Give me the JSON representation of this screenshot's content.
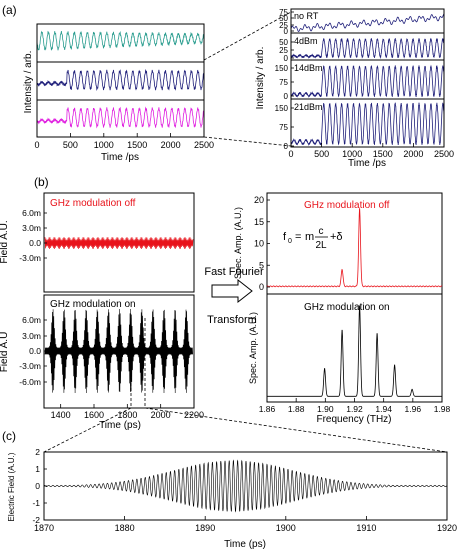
{
  "panel_labels": {
    "a": "(a)",
    "b": "(b)",
    "c": "(c)"
  },
  "colors": {
    "teal": "#2a9d8f",
    "navy": "#1f1f7a",
    "magenta": "#e020e0",
    "red": "#e8131b",
    "black": "#000000"
  },
  "arrow_text": {
    "line1": "Fast Fourier",
    "line2": "Transform"
  },
  "formula": {
    "lhs": "f",
    "sub": "0",
    "eq": "=",
    "m": "m",
    "num": "c",
    "den": "2L",
    "rest": "+δ"
  },
  "chart_data": [
    {
      "id": "a_left",
      "type": "line",
      "xlabel": "Time /ps",
      "ylabel": "Intensity / arb.",
      "x_ticks": [
        "0",
        "500",
        "1000",
        "1500",
        "2000",
        "2500"
      ],
      "xlim": [
        0,
        2500
      ],
      "series": [
        {
          "color": "#2a9d8f"
        },
        {
          "color": "#1f1f7a"
        },
        {
          "color": "#e020e0"
        }
      ]
    },
    {
      "id": "a_right",
      "type": "line",
      "xlabel": "Time /ps",
      "ylabel": "Intensity / arb.",
      "x_ticks": [
        "0",
        "500",
        "1000",
        "1500",
        "2000",
        "2500"
      ],
      "xlim": [
        0,
        2500
      ],
      "subpanels": [
        {
          "label": "no RT",
          "y_ticks": [
            "0",
            "25",
            "50",
            "75"
          ],
          "ylim": [
            0,
            80
          ]
        },
        {
          "label": "4dBm",
          "y_ticks": [
            "0",
            "25",
            "50"
          ],
          "ylim": [
            0,
            60
          ]
        },
        {
          "label": "14dBm",
          "y_ticks": [
            "0",
            "75",
            "150"
          ],
          "ylim": [
            0,
            160
          ]
        },
        {
          "label": "21dBm",
          "y_ticks": [
            "0",
            "75",
            "150"
          ],
          "ylim": [
            0,
            170
          ]
        }
      ]
    },
    {
      "id": "b_left",
      "type": "line",
      "xlabel": "Time (ps)",
      "x_ticks": [
        "1400",
        "1600",
        "1800",
        "2000",
        "2200"
      ],
      "xlim": [
        1300,
        2200
      ],
      "subpanels": [
        {
          "label": "GHz modulation off",
          "ylabel": "Field A.U.",
          "y_ticks": [
            "6.0m",
            "3.0m",
            "0.0",
            "-3.0m"
          ],
          "ylim": [
            -0.0045,
            0.0075
          ]
        },
        {
          "label": "GHz modulation on",
          "ylabel": "Field A.U",
          "y_ticks": [
            "6.0m",
            "3.0m",
            "0.0",
            "-3.0m",
            "-6.0m"
          ],
          "ylim": [
            -0.0072,
            0.0072
          ]
        }
      ]
    },
    {
      "id": "b_right",
      "type": "line",
      "xlabel": "Frequency (THz)",
      "x_ticks": [
        "1.86",
        "1.88",
        "1.90",
        "1.92",
        "1.94",
        "1.96",
        "1.98"
      ],
      "xlim": [
        1.86,
        1.98
      ],
      "subpanels": [
        {
          "label": "GHz modulation off",
          "ylabel": "Spec. Amp. (A.U.)",
          "y_ticks": [
            "0",
            "5",
            "10",
            "15",
            "20"
          ],
          "ylim": [
            -1,
            21
          ],
          "peaks": [
            {
              "x": 1.9115,
              "y": 4
            },
            {
              "x": 1.9235,
              "y": 18
            }
          ]
        },
        {
          "label": "GHz modulation on",
          "ylabel": "Spec. Amp. (A.U.)",
          "peaks": [
            {
              "x": 1.8995,
              "y": 8
            },
            {
              "x": 1.9115,
              "y": 19
            },
            {
              "x": 1.9235,
              "y": 26
            },
            {
              "x": 1.9355,
              "y": 18
            },
            {
              "x": 1.9475,
              "y": 9
            },
            {
              "x": 1.9595,
              "y": 2
            }
          ]
        }
      ]
    },
    {
      "id": "c",
      "type": "line",
      "xlabel": "Time (ps)",
      "ylabel": "Electric Field (A.U.)",
      "x_ticks": [
        "1870",
        "1880",
        "1890",
        "1900",
        "1910",
        "1920"
      ],
      "y_ticks": [
        "2",
        "1",
        "0",
        "-1",
        "-2"
      ],
      "xlim": [
        1870,
        1920
      ],
      "ylim": [
        -2,
        2
      ],
      "envelope_peak": 1.5
    }
  ]
}
